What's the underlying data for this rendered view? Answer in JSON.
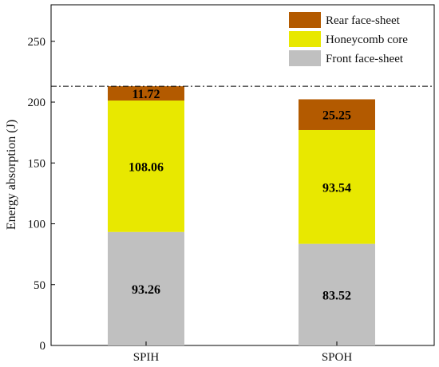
{
  "chart_data": {
    "type": "bar",
    "stacked": true,
    "categories": [
      "SPIH",
      "SPOH"
    ],
    "series": [
      {
        "name": "Front face-sheet",
        "values": [
          93.26,
          83.52
        ],
        "color": "#c0c0c0"
      },
      {
        "name": "Honeycomb core",
        "values": [
          108.06,
          93.54
        ],
        "color": "#e8e800"
      },
      {
        "name": "Rear face-sheet",
        "values": [
          11.72,
          25.25
        ],
        "color": "#b35a00"
      }
    ],
    "data_labels": [
      [
        "93.26",
        "83.52"
      ],
      [
        "108.06",
        "93.54"
      ],
      [
        "11.72",
        "25.25"
      ]
    ],
    "legend_order": [
      "Rear face-sheet",
      "Honeycomb core",
      "Front face-sheet"
    ],
    "ylabel": "Energy absorption (J)",
    "xlabel": "",
    "ylim": [
      0,
      280
    ],
    "yticks": [
      0,
      50,
      100,
      150,
      200,
      250
    ],
    "reference_line_y": 213.04,
    "legend_position": "top-right",
    "grid": false
  }
}
